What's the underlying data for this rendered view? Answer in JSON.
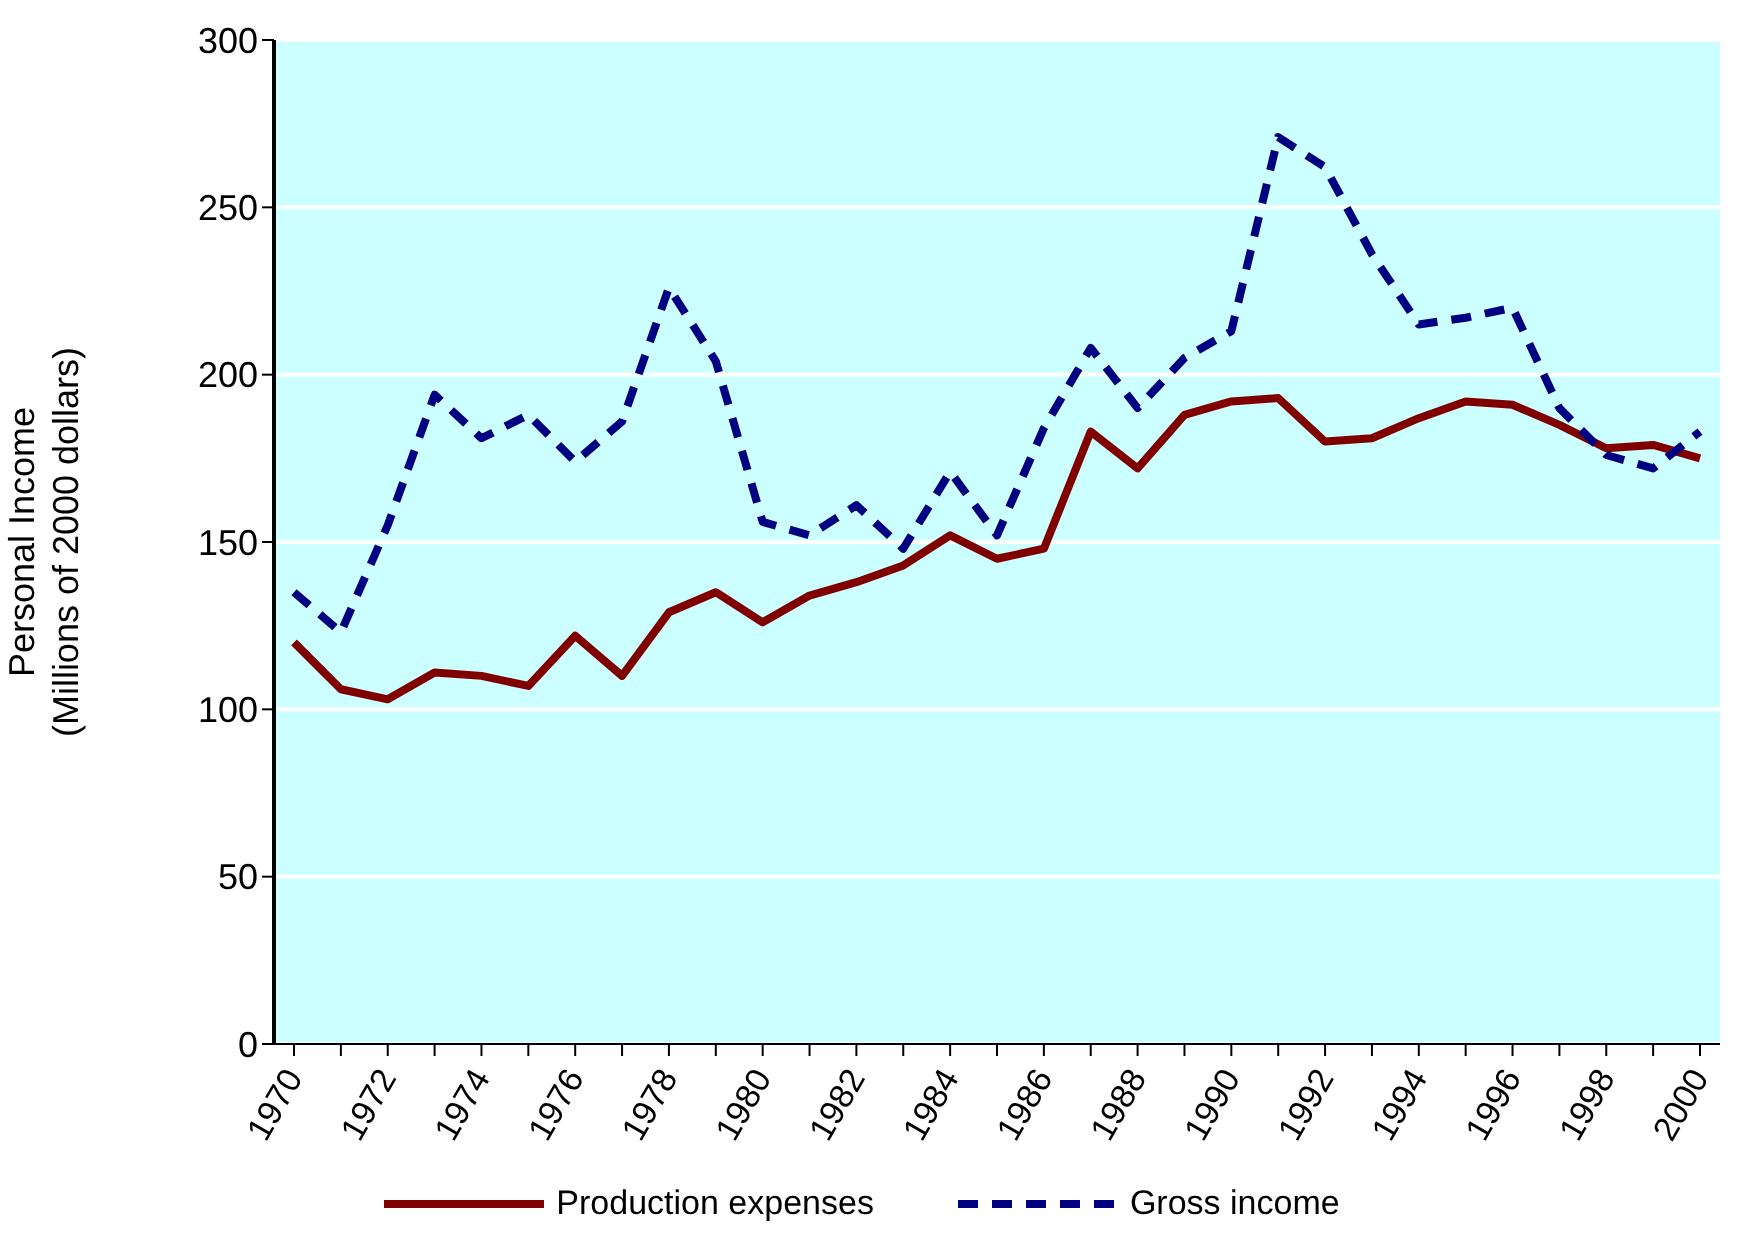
{
  "chart_data": {
    "type": "line",
    "ylabel": "Personal Income\n(Millions of 2000 dollars)",
    "categories": [
      "1970",
      null,
      "1972",
      null,
      "1974",
      null,
      "1976",
      null,
      "1978",
      null,
      "1980",
      null,
      "1982",
      null,
      "1984",
      null,
      "1986",
      null,
      "1988",
      null,
      "1990",
      null,
      "1992",
      null,
      "1994",
      null,
      "1996",
      null,
      "1998",
      null,
      "2000"
    ],
    "series": [
      {
        "name": "Production expenses",
        "color": "#800000",
        "line_style": "solid",
        "values": [
          120,
          106,
          103,
          111,
          110,
          107,
          122,
          110,
          129,
          135,
          126,
          134,
          138,
          143,
          152,
          145,
          148,
          183,
          172,
          188,
          192,
          193,
          180,
          181,
          187,
          192,
          191,
          185,
          178,
          179,
          175
        ]
      },
      {
        "name": "Gross income",
        "color": "#000080",
        "line_style": "dashed",
        "values": [
          135,
          123,
          155,
          194,
          181,
          188,
          174,
          186,
          226,
          204,
          156,
          152,
          161,
          148,
          171,
          152,
          184,
          208,
          190,
          205,
          213,
          271,
          262,
          236,
          215,
          217,
          220,
          190,
          176,
          172,
          183
        ]
      }
    ],
    "ylim": [
      0,
      300
    ],
    "yticks": [
      0,
      50,
      100,
      150,
      200,
      250,
      300
    ],
    "grid": "y",
    "legend": "bottom",
    "marker": "none"
  }
}
